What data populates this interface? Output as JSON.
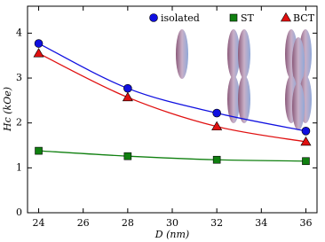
{
  "chart_data": {
    "type": "line",
    "xlabel": "D (nm)",
    "ylabel": "Hc (kOe)",
    "x": [
      24,
      28,
      32,
      36
    ],
    "series": [
      {
        "name": "isolated",
        "color": "#1010e0",
        "marker": "circle",
        "values": [
          3.77,
          2.77,
          2.22,
          1.82
        ]
      },
      {
        "name": "ST",
        "color": "#108010",
        "marker": "square",
        "values": [
          1.38,
          1.26,
          1.18,
          1.15
        ]
      },
      {
        "name": "BCT",
        "color": "#e01010",
        "marker": "triangle",
        "values": [
          3.55,
          2.57,
          1.92,
          1.58
        ]
      }
    ],
    "xlim": [
      23.5,
      36.5
    ],
    "xticks": [
      24,
      26,
      28,
      30,
      32,
      34,
      36
    ],
    "ylim": [
      0,
      4.6
    ],
    "yticks": [
      0,
      1,
      2,
      3,
      4
    ],
    "legend": "top"
  }
}
